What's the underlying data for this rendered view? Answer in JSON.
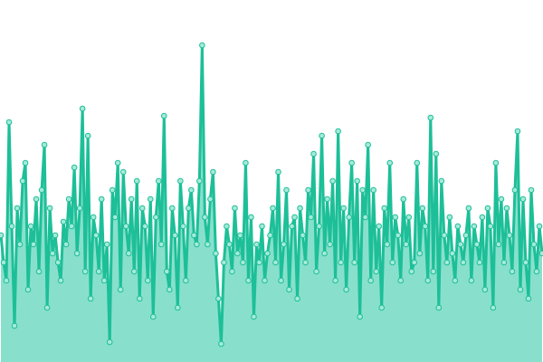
{
  "chart_data": {
    "type": "area",
    "x": [
      0,
      1,
      2,
      3,
      4,
      5,
      6,
      7,
      8,
      9,
      10,
      11,
      12,
      13,
      14,
      15,
      16,
      17,
      18,
      19,
      20,
      21,
      22,
      23,
      24,
      25,
      26,
      27,
      28,
      29,
      30,
      31,
      32,
      33,
      34,
      35,
      36,
      37,
      38,
      39,
      40,
      41,
      42,
      43,
      44,
      45,
      46,
      47,
      48,
      49,
      50,
      51,
      52,
      53,
      54,
      55,
      56,
      57,
      58,
      59,
      60,
      61,
      62,
      63,
      64,
      65,
      66,
      67,
      68,
      69,
      70,
      71,
      72,
      73,
      74,
      75,
      76,
      77,
      78,
      79,
      80,
      81,
      82,
      83,
      84,
      85,
      86,
      87,
      88,
      89,
      90,
      91,
      92,
      93,
      94,
      95,
      96,
      97,
      98,
      99,
      100,
      101,
      102,
      103,
      104,
      105,
      106,
      107,
      108,
      109,
      110,
      111,
      112,
      113,
      114,
      115,
      116,
      117,
      118,
      119,
      120,
      121,
      122,
      123,
      124,
      125,
      126,
      127,
      128,
      129,
      130,
      131,
      132,
      133,
      134,
      135,
      136,
      137,
      138,
      139,
      140,
      141,
      142,
      143,
      144,
      145,
      146,
      147,
      148,
      149,
      150,
      151,
      152,
      153,
      154,
      155,
      156,
      157,
      158,
      159,
      160,
      161,
      162,
      163,
      164,
      165,
      166,
      167,
      168,
      169,
      170,
      171,
      172,
      173,
      174,
      175,
      176,
      177,
      178,
      179,
      180,
      181,
      182,
      183,
      184,
      185,
      186,
      187,
      188,
      189,
      190,
      191,
      192,
      193,
      194,
      195,
      196,
      197,
      198,
      199
    ],
    "values": [
      140,
      110,
      90,
      265,
      150,
      40,
      170,
      130,
      200,
      220,
      80,
      150,
      130,
      180,
      100,
      190,
      240,
      60,
      170,
      120,
      140,
      110,
      90,
      155,
      130,
      180,
      150,
      215,
      120,
      170,
      280,
      100,
      250,
      70,
      160,
      140,
      100,
      180,
      90,
      130,
      22,
      190,
      160,
      220,
      80,
      210,
      150,
      120,
      180,
      100,
      200,
      70,
      170,
      150,
      90,
      180,
      50,
      160,
      200,
      130,
      272,
      100,
      80,
      170,
      140,
      60,
      200,
      150,
      90,
      170,
      190,
      140,
      130,
      200,
      350,
      160,
      130,
      180,
      210,
      120,
      70,
      20,
      110,
      150,
      130,
      100,
      170,
      120,
      140,
      110,
      220,
      90,
      160,
      50,
      130,
      110,
      150,
      90,
      120,
      140,
      170,
      110,
      210,
      90,
      130,
      190,
      80,
      150,
      160,
      70,
      170,
      140,
      110,
      190,
      160,
      230,
      100,
      150,
      250,
      120,
      180,
      130,
      200,
      90,
      255,
      110,
      170,
      80,
      160,
      220,
      110,
      200,
      50,
      190,
      160,
      240,
      90,
      190,
      100,
      150,
      60,
      170,
      130,
      220,
      110,
      160,
      140,
      90,
      180,
      130,
      160,
      100,
      110,
      220,
      120,
      170,
      150,
      90,
      270,
      100,
      230,
      60,
      200,
      140,
      110,
      160,
      120,
      90,
      150,
      130,
      110,
      140,
      170,
      90,
      150,
      130,
      110,
      160,
      80,
      170,
      150,
      60,
      220,
      130,
      180,
      110,
      170,
      140,
      100,
      190,
      255,
      80,
      180,
      110,
      70,
      190,
      130,
      100,
      150,
      120
    ],
    "xlim": [
      0,
      199
    ],
    "ylim": [
      0,
      400
    ],
    "line_color": "#1dbf98",
    "fill_color": "#88e0cc",
    "marker_color": "#a6ead9"
  }
}
